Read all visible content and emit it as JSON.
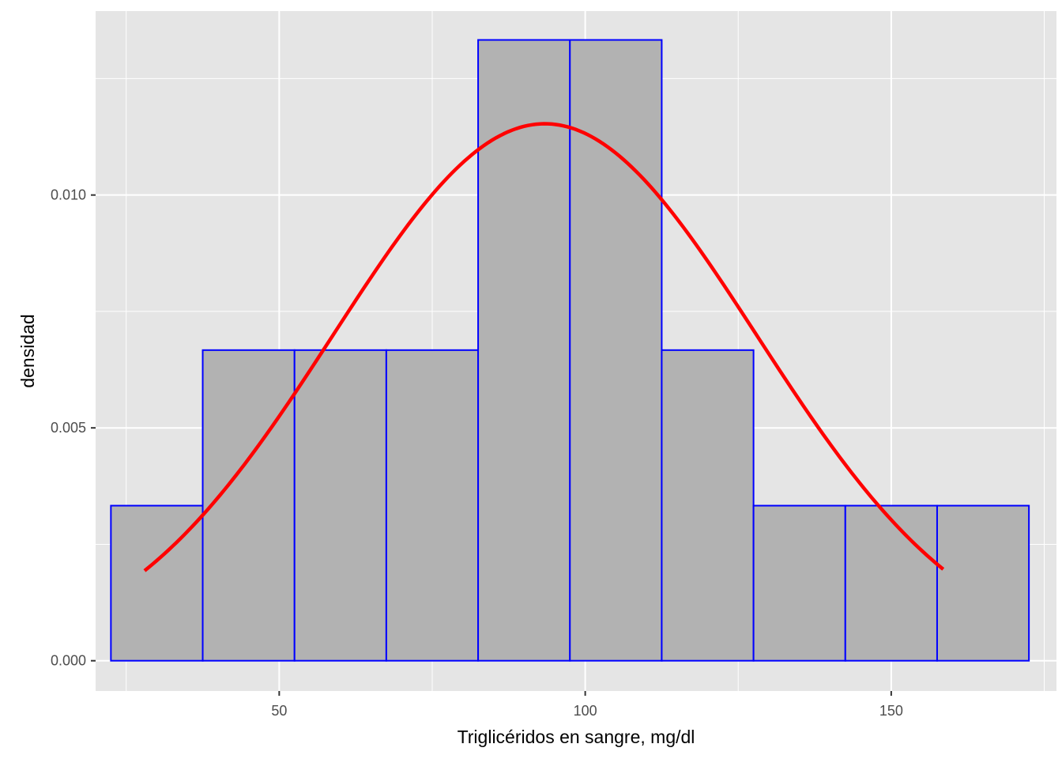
{
  "chart_data": {
    "type": "bar",
    "subtype": "histogram-with-density-curve",
    "title": "",
    "xlabel": "Triglicéridos en sangre, mg/dl",
    "ylabel": "densidad",
    "xlim": [
      20,
      177
    ],
    "ylim": [
      -0.00065,
      0.01395
    ],
    "x_ticks": [
      50,
      100,
      150
    ],
    "x_tick_labels": [
      "50",
      "100",
      "150"
    ],
    "y_ticks": [
      0.0,
      0.005,
      0.01
    ],
    "y_tick_labels": [
      "0.000",
      "0.005",
      "0.010"
    ],
    "grid": true,
    "bins": [
      {
        "x0": 22.5,
        "x1": 37.5,
        "density": 0.00333
      },
      {
        "x0": 37.5,
        "x1": 52.5,
        "density": 0.00667
      },
      {
        "x0": 52.5,
        "x1": 67.5,
        "density": 0.00667
      },
      {
        "x0": 67.5,
        "x1": 82.5,
        "density": 0.00667
      },
      {
        "x0": 82.5,
        "x1": 97.5,
        "density": 0.01333
      },
      {
        "x0": 97.5,
        "x1": 112.5,
        "density": 0.01333
      },
      {
        "x0": 112.5,
        "x1": 127.5,
        "density": 0.00667
      },
      {
        "x0": 127.5,
        "x1": 142.5,
        "density": 0.00333
      },
      {
        "x0": 142.5,
        "x1": 157.5,
        "density": 0.00333
      },
      {
        "x0": 157.5,
        "x1": 172.5,
        "density": 0.00333
      }
    ],
    "density_curve": {
      "kind": "normal",
      "mean": 93.4,
      "sd": 34.6,
      "x_range": [
        28,
        158.5
      ]
    },
    "colors": {
      "panel_background": "#e5e5e5",
      "grid": "#ffffff",
      "bar_fill": "#b2b2b2",
      "bar_outline": "#0000ff",
      "curve": "#ff0000",
      "tick_label": "#4d4d4d",
      "axis_title": "#000000"
    }
  }
}
